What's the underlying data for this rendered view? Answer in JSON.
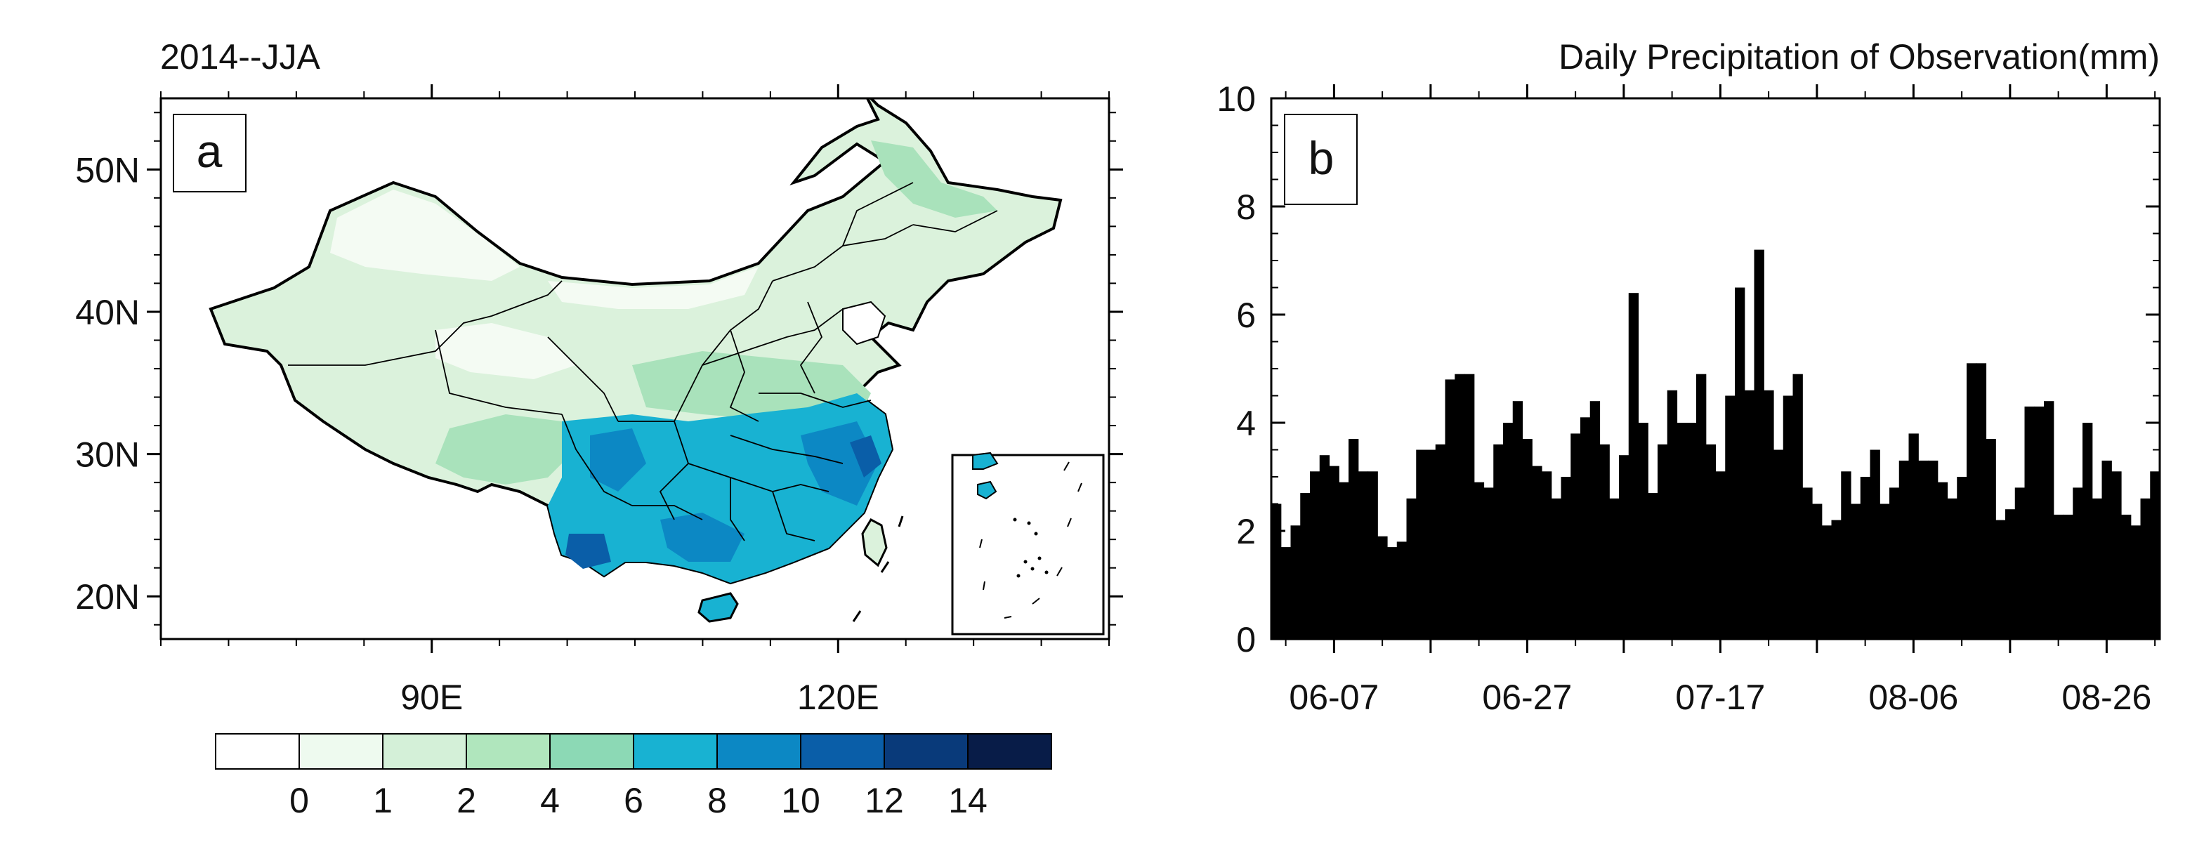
{
  "panel_a": {
    "title": "2014--JJA",
    "panel_label": "a",
    "lat_ticks": [
      "50N",
      "40N",
      "30N",
      "20N"
    ],
    "lat_values": [
      50,
      40,
      30,
      20
    ],
    "lon_ticks": [
      "90E",
      "120E"
    ],
    "lon_values": [
      90,
      120
    ],
    "lon_range": [
      70,
      140
    ],
    "lat_range": [
      17,
      55
    ],
    "colorbar": {
      "labels": [
        "0",
        "1",
        "2",
        "4",
        "6",
        "8",
        "10",
        "12",
        "14"
      ],
      "colors": [
        "#ffffff",
        "#eefaef",
        "#d4f0d8",
        "#b0e6bd",
        "#8cd9b5",
        "#18b2d2",
        "#0c88c4",
        "#0a5ea8",
        "#093a7a",
        "#081c48"
      ]
    }
  },
  "chart_data": {
    "type": "bar",
    "title": "Daily Precipitation of Observation(mm)",
    "panel_label": "b",
    "xlabel": "",
    "ylabel": "",
    "ylim": [
      0,
      10
    ],
    "y_ticks": [
      "0",
      "2",
      "4",
      "6",
      "8",
      "10"
    ],
    "x_tick_labels": [
      "06-07",
      "06-27",
      "07-17",
      "08-06",
      "08-26"
    ],
    "x_tick_days": [
      7,
      27,
      47,
      67,
      87
    ],
    "start_day": 1,
    "values": [
      2.5,
      1.7,
      2.1,
      2.7,
      3.1,
      3.4,
      3.2,
      2.9,
      3.7,
      3.1,
      3.1,
      1.9,
      1.7,
      1.8,
      2.6,
      3.5,
      3.5,
      3.6,
      4.8,
      4.9,
      4.9,
      2.9,
      2.8,
      3.6,
      4.0,
      4.4,
      3.7,
      3.2,
      3.1,
      2.6,
      3.0,
      3.8,
      4.1,
      4.4,
      3.6,
      2.6,
      3.4,
      6.4,
      4.0,
      2.7,
      3.6,
      4.6,
      4.0,
      4.0,
      4.9,
      3.6,
      3.1,
      4.5,
      6.5,
      4.6,
      7.2,
      4.6,
      3.5,
      4.5,
      4.9,
      2.8,
      2.5,
      2.1,
      2.2,
      3.1,
      2.5,
      3.0,
      3.5,
      2.5,
      2.8,
      3.3,
      3.8,
      3.3,
      3.3,
      2.9,
      2.6,
      3.0,
      5.1,
      5.1,
      3.7,
      2.2,
      2.4,
      2.8,
      4.3,
      4.3,
      4.4,
      2.3,
      2.3,
      2.8,
      4.0,
      2.6,
      3.3,
      3.1,
      2.3,
      2.1,
      2.6,
      3.1
    ]
  }
}
